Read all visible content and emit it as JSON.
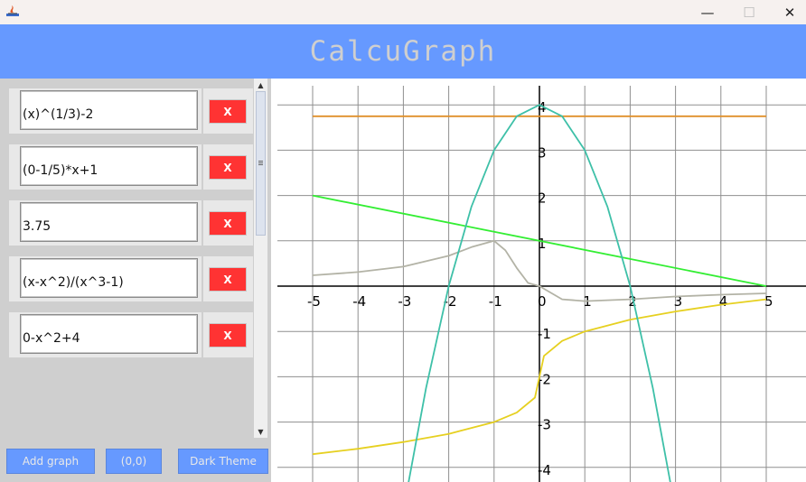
{
  "window": {
    "minimize_glyph": "—",
    "maximize_glyph": "☐",
    "close_glyph": "✕"
  },
  "header": {
    "title": "CalcuGraph"
  },
  "functions": [
    {
      "expression": "(x)^(1/3)-2",
      "delete_label": "X"
    },
    {
      "expression": "(0-1/5)*x+1",
      "delete_label": "X"
    },
    {
      "expression": "3.75",
      "delete_label": "X"
    },
    {
      "expression": "(x-x^2)/(x^3-1)",
      "delete_label": "X"
    },
    {
      "expression": "0-x^2+4",
      "delete_label": "X"
    }
  ],
  "buttons": {
    "add_graph": "Add graph",
    "origin": "(0,0)",
    "theme": "Dark Theme"
  },
  "colors": {
    "accent": "#6699ff",
    "delete": "#ff3333",
    "series": [
      "#e6d020",
      "#33ee33",
      "#e0902a",
      "#b3b3a6",
      "#3ec0a8"
    ]
  },
  "chart_data": {
    "type": "line",
    "title": "",
    "xlabel": "",
    "ylabel": "",
    "xlim": [
      -5,
      5
    ],
    "ylim": [
      -4.3,
      4.2
    ],
    "x_ticks": [
      "-5",
      "-4",
      "-3",
      "-2",
      "-1",
      "0",
      "1",
      "2",
      "3",
      "4",
      "5"
    ],
    "y_ticks": [
      "-4",
      "-3",
      "-2",
      "-1",
      "1",
      "2",
      "3",
      "4"
    ],
    "grid": true,
    "series": [
      {
        "expression": "(x)^(1/3)-2",
        "color": "#e6d020",
        "x": [
          -5,
          -4,
          -3,
          -2,
          -1,
          -0.5,
          -0.1,
          0,
          0.1,
          0.5,
          1,
          2,
          3,
          4,
          5
        ],
        "y": [
          -3.71,
          -3.59,
          -3.44,
          -3.26,
          -3.0,
          -2.79,
          -2.46,
          -2.0,
          -1.54,
          -1.21,
          -1.0,
          -0.74,
          -0.56,
          -0.41,
          -0.29
        ]
      },
      {
        "expression": "(0-1/5)*x+1",
        "color": "#33ee33",
        "x": [
          -5,
          5
        ],
        "y": [
          2,
          0
        ]
      },
      {
        "expression": "3.75",
        "color": "#e0902a",
        "x": [
          -5,
          5
        ],
        "y": [
          3.75,
          3.75
        ]
      },
      {
        "expression": "(x-x^2)/(x^3-1)",
        "color": "#b3b3a6",
        "x": [
          -5,
          -4,
          -3,
          -2,
          -1.5,
          -1,
          -0.75,
          -0.5,
          -0.25,
          0,
          0.5,
          1,
          2,
          3,
          4,
          5
        ],
        "y": [
          0.24,
          0.31,
          0.43,
          0.67,
          0.86,
          1.0,
          0.79,
          0.4,
          0.07,
          0,
          -0.29,
          -0.33,
          -0.29,
          -0.23,
          -0.19,
          -0.16
        ]
      },
      {
        "expression": "0-x^2+4",
        "color": "#3ec0a8",
        "x": [
          -2.9,
          -2.5,
          -2,
          -1.5,
          -1,
          -0.5,
          0,
          0.5,
          1,
          1.5,
          2,
          2.5,
          2.9
        ],
        "y": [
          -4.41,
          -2.25,
          0,
          1.75,
          3,
          3.75,
          4,
          3.75,
          3,
          1.75,
          0,
          -2.25,
          -4.41
        ]
      }
    ]
  }
}
